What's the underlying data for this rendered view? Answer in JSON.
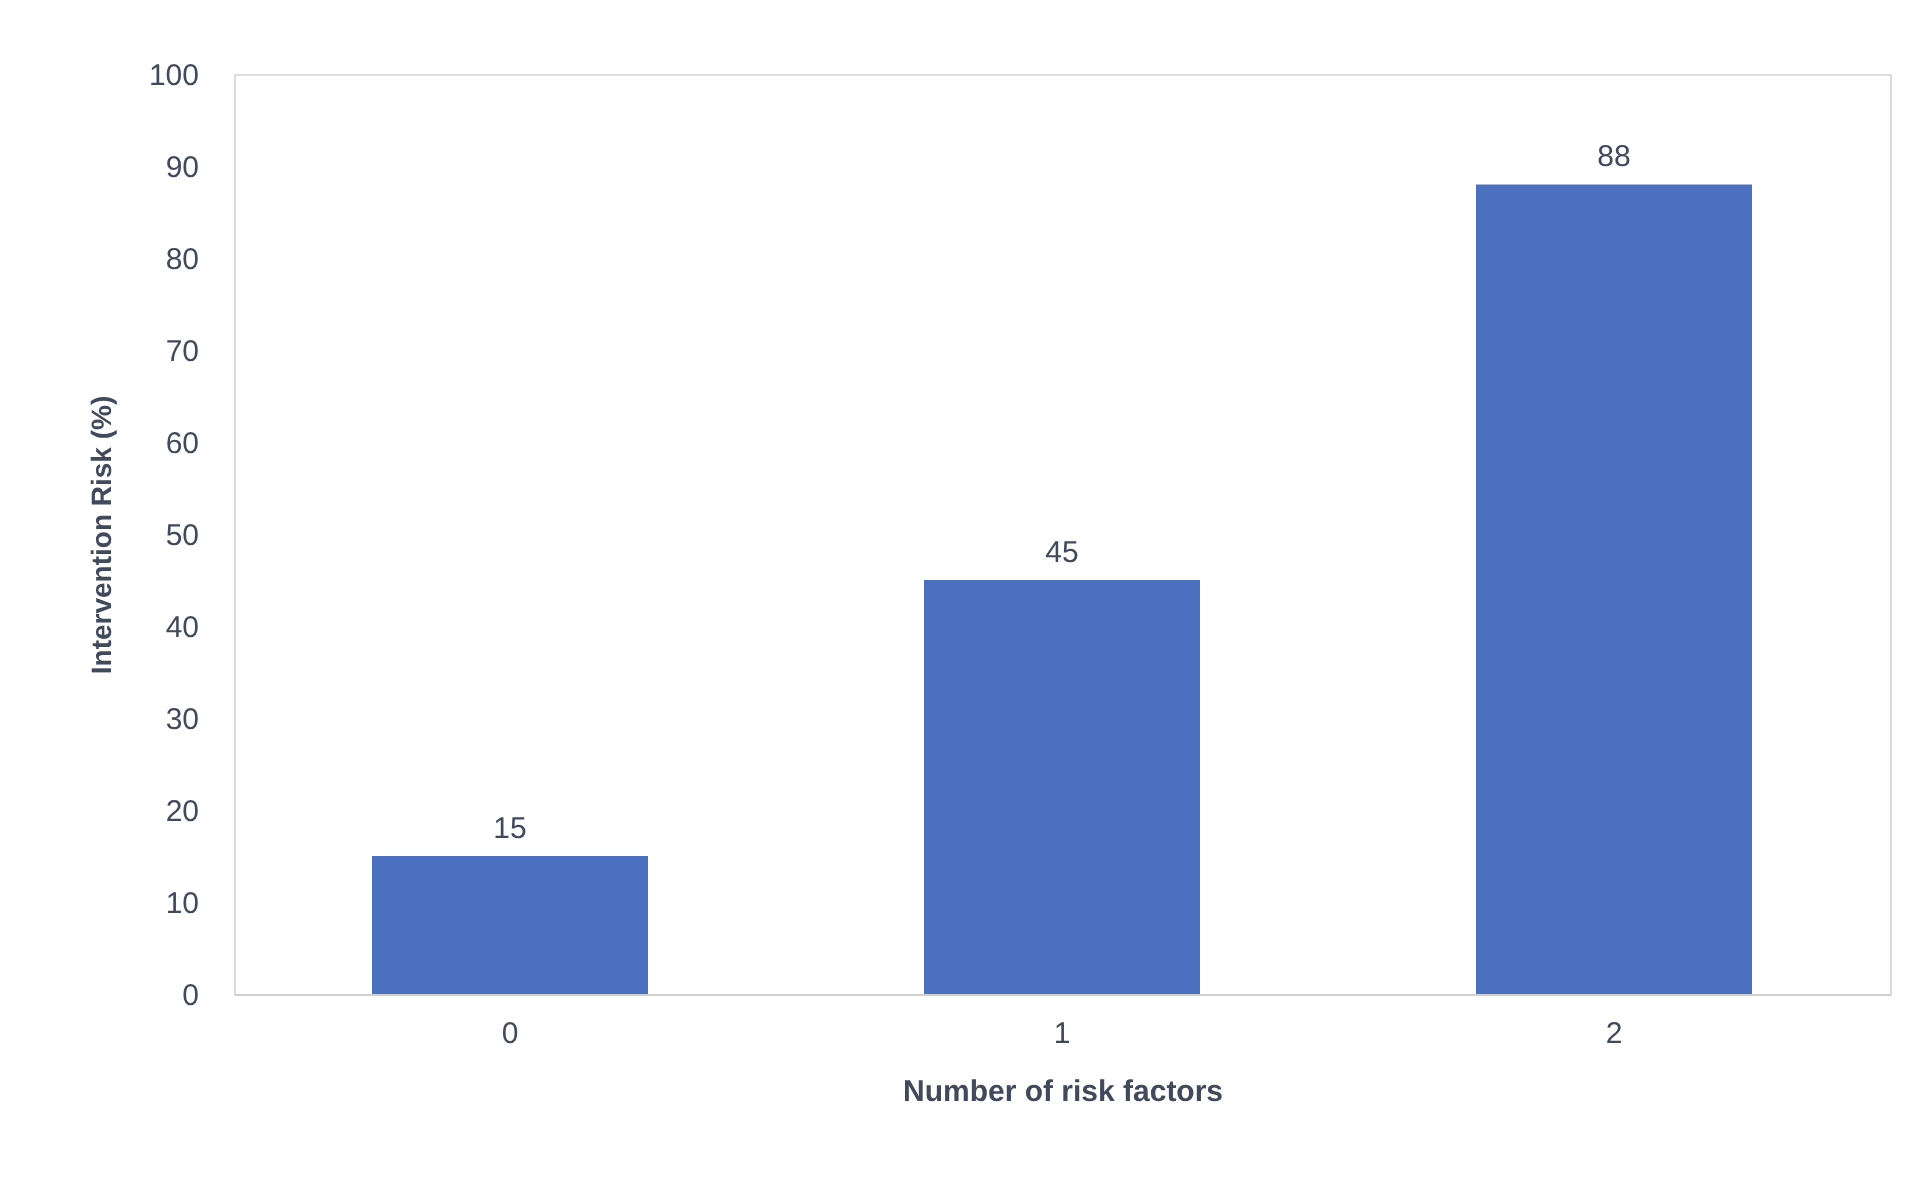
{
  "chart_data": {
    "type": "bar",
    "xlabel": "Number of risk factors",
    "ylabel": "Intervention Risk (%)",
    "categories": [
      "0",
      "1",
      "2"
    ],
    "values": [
      15,
      45,
      88
    ],
    "color": "#4a70bf",
    "ylim": [
      0,
      100
    ],
    "yticks": [
      0,
      10,
      20,
      30,
      40,
      50,
      60,
      70,
      80,
      90,
      100
    ],
    "grid": false,
    "data_labels": true
  }
}
